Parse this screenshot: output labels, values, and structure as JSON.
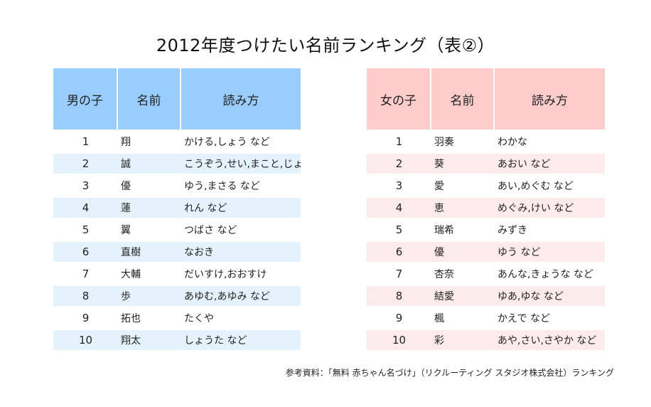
{
  "title": "2012年度つけたい名前ランキング（表②）",
  "boys": {
    "headers": [
      "男の子",
      "名前",
      "読み方"
    ],
    "rows": [
      {
        "rank": "1",
        "name": "翔",
        "reading": "かける,しょう など"
      },
      {
        "rank": "2",
        "name": "誠",
        "reading": "こうぞう,せい,まこと,じょう"
      },
      {
        "rank": "3",
        "name": "優",
        "reading": "ゆう,まさる など"
      },
      {
        "rank": "4",
        "name": "蓮",
        "reading": "れん など"
      },
      {
        "rank": "5",
        "name": "翼",
        "reading": "つばさ など"
      },
      {
        "rank": "6",
        "name": "直樹",
        "reading": "なおき"
      },
      {
        "rank": "7",
        "name": "大輔",
        "reading": "だいすけ,おおすけ"
      },
      {
        "rank": "8",
        "name": "歩",
        "reading": "あゆむ,あゆみ など"
      },
      {
        "rank": "9",
        "name": "拓也",
        "reading": "たくや"
      },
      {
        "rank": "10",
        "name": "翔太",
        "reading": "しょうた など"
      }
    ]
  },
  "girls": {
    "headers": [
      "女の子",
      "名前",
      "読み方"
    ],
    "rows": [
      {
        "rank": "1",
        "name": "羽奏",
        "reading": "わかな"
      },
      {
        "rank": "2",
        "name": "葵",
        "reading": "あおい など"
      },
      {
        "rank": "3",
        "name": "愛",
        "reading": "あい,めぐむ など"
      },
      {
        "rank": "4",
        "name": "恵",
        "reading": "めぐみ,けい など"
      },
      {
        "rank": "5",
        "name": "瑞希",
        "reading": "みずき"
      },
      {
        "rank": "6",
        "name": "優",
        "reading": "ゆう など"
      },
      {
        "rank": "7",
        "name": "杏奈",
        "reading": "あんな,きょうな など"
      },
      {
        "rank": "8",
        "name": "結愛",
        "reading": "ゆあ,ゆな など"
      },
      {
        "rank": "9",
        "name": "楓",
        "reading": "かえで など"
      },
      {
        "rank": "10",
        "name": "彩",
        "reading": "あや,さい,さやか など"
      }
    ]
  },
  "source": "参考資料：「無料 赤ちゃん名づけ」（リクルーティング スタジオ株式会社）ランキング",
  "colors": {
    "boys_header": "#99ccff",
    "boys_row_alt": "#e3f2fc",
    "girls_header": "#ffcccc",
    "girls_row_alt": "#fdeaea"
  }
}
